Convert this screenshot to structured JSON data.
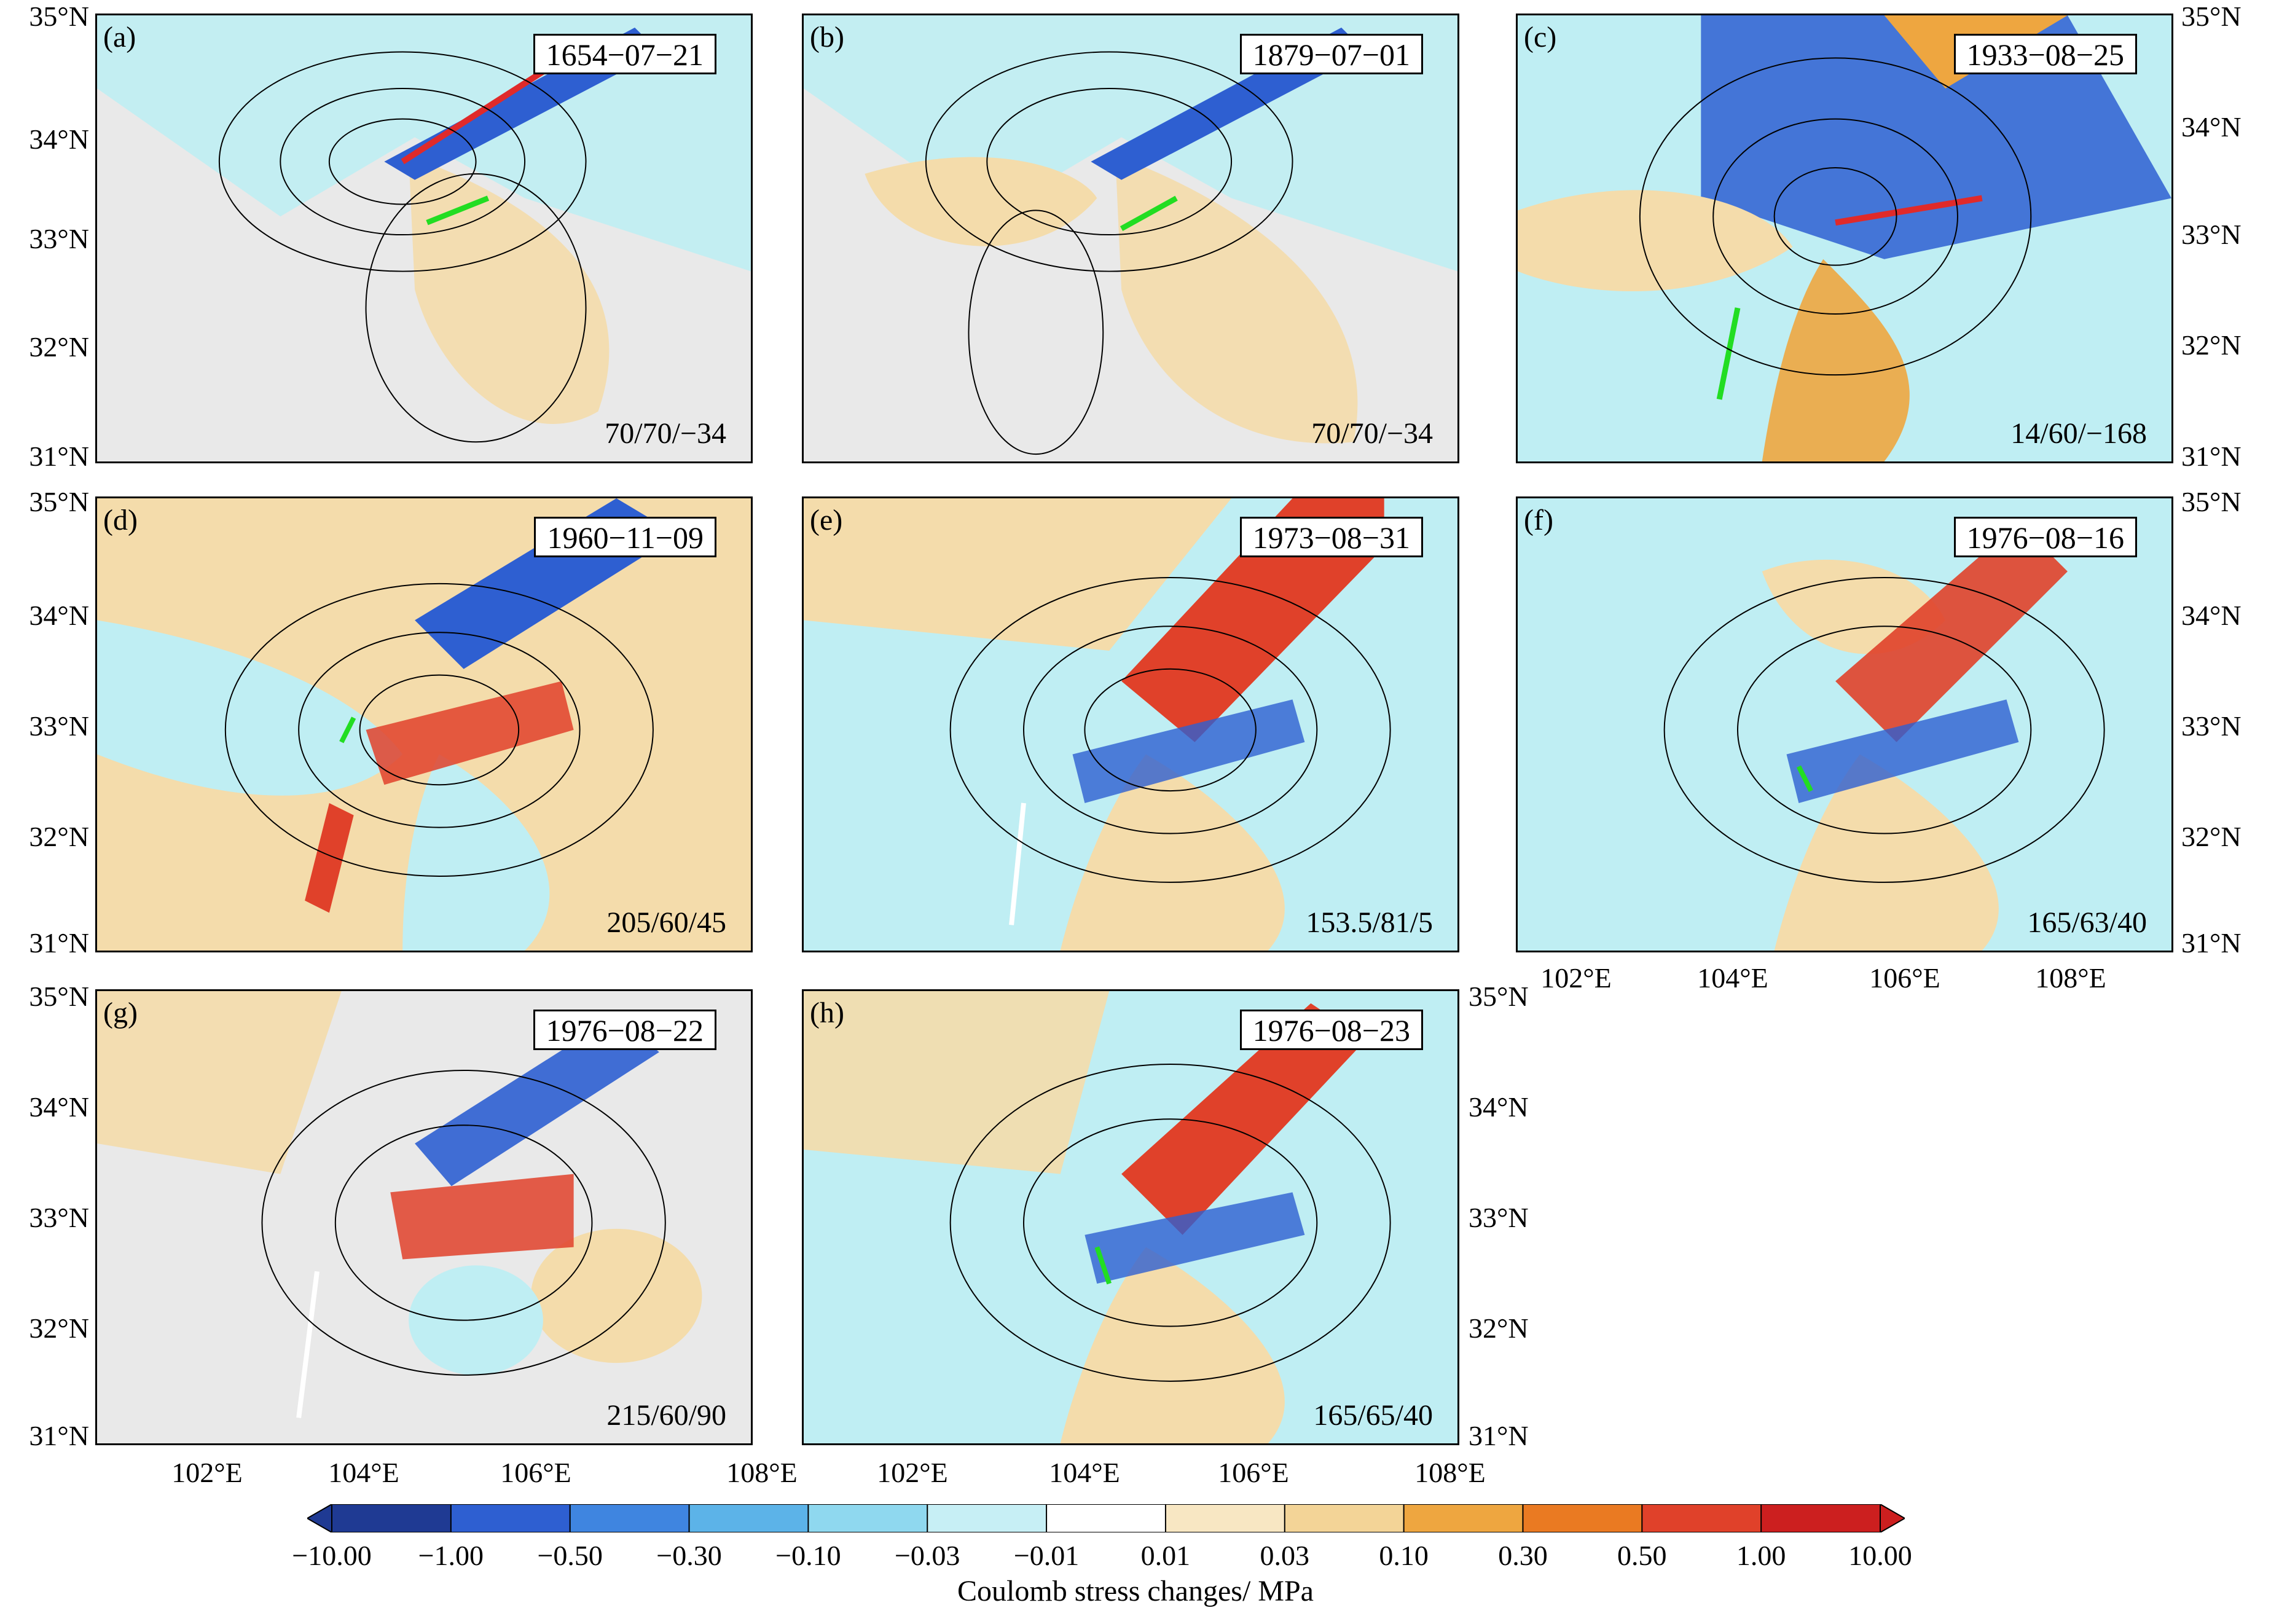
{
  "panels": [
    {
      "label": "(a)",
      "date": "1654−07−21",
      "mechanism": "70/70/−34"
    },
    {
      "label": "(b)",
      "date": "1879−07−01",
      "mechanism": "70/70/−34"
    },
    {
      "label": "(c)",
      "date": "1933−08−25",
      "mechanism": "14/60/−168"
    },
    {
      "label": "(d)",
      "date": "1960−11−09",
      "mechanism": "205/60/45"
    },
    {
      "label": "(e)",
      "date": "1973−08−31",
      "mechanism": "153.5/81/5"
    },
    {
      "label": "(f)",
      "date": "1976−08−16",
      "mechanism": "165/63/40"
    },
    {
      "label": "(g)",
      "date": "1976−08−22",
      "mechanism": "215/60/90"
    },
    {
      "label": "(h)",
      "date": "1976−08−23",
      "mechanism": "165/65/40"
    }
  ],
  "lat_labels": [
    "35°N",
    "34°N",
    "33°N",
    "32°N",
    "31°N"
  ],
  "lon_labels": [
    "102°E",
    "104°E",
    "106°E",
    "108°E"
  ],
  "colorbar": {
    "title": "Coulomb stress changes/ MPa",
    "ticks": [
      "−10.00",
      "−1.00",
      "−0.50",
      "−0.30",
      "−0.10",
      "−0.03",
      "−0.01",
      "0.01",
      "0.03",
      "0.10",
      "0.30",
      "0.50",
      "1.00",
      "10.00"
    ],
    "colors": [
      "#1f3a93",
      "#2e5fd1",
      "#3f85e0",
      "#5cb3e8",
      "#8fd8ef",
      "#c7eff5",
      "#ffffff",
      "#f8e7c3",
      "#f3d497",
      "#eea640",
      "#ea7a22",
      "#e0412a",
      "#cc1f1f"
    ]
  },
  "colors": {
    "positive": "#e0412a",
    "negative": "#2e5fd1",
    "fault_trace_green": "#22dd22"
  }
}
